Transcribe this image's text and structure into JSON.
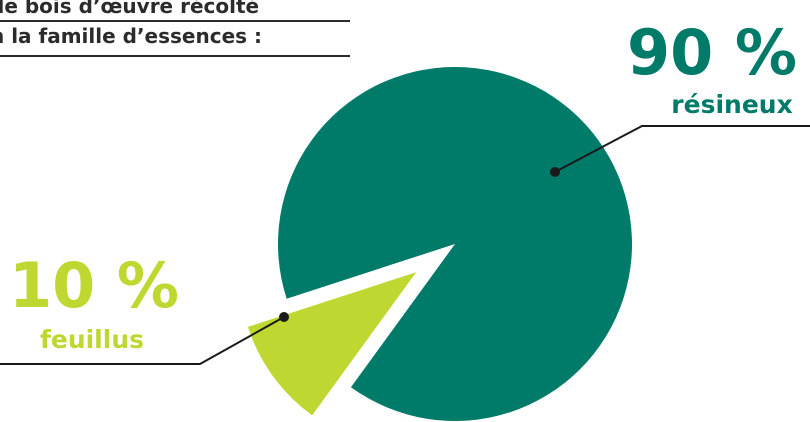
{
  "title_lines": [
    "de bois d’œuvre récolté",
    "n la famille d’essences :"
  ],
  "chart_data": {
    "type": "pie",
    "title": "de bois d’œuvre récolté n la famille d’essences :",
    "slices": [
      {
        "label": "résineux",
        "value": 90,
        "display": "90 %",
        "color": "#007b6a"
      },
      {
        "label": "feuillus",
        "value": 10,
        "display": "10 %",
        "color": "#bfd730"
      }
    ],
    "slice_order": "clockwise from 18 degrees below horizontal-left; minor slice exploded",
    "leader_line_color": "#1a1a1a"
  }
}
